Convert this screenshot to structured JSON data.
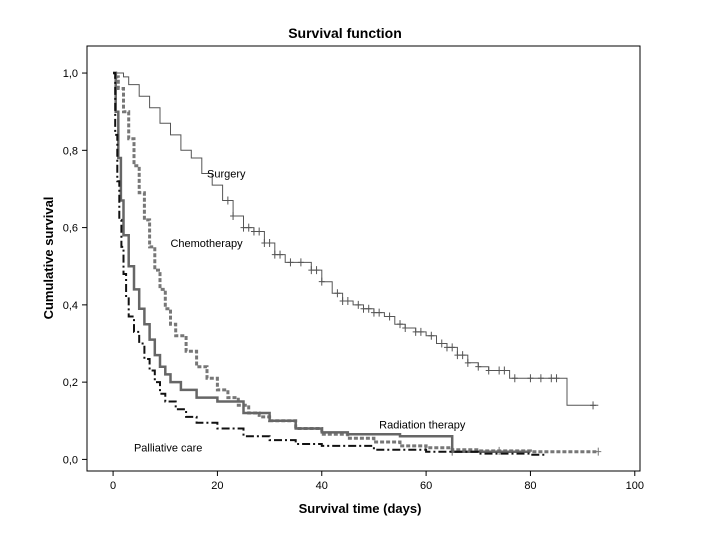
{
  "chart_data": {
    "type": "line",
    "title": "Survival function",
    "xlabel": "Survival time (days)",
    "ylabel": "Cumulative survival",
    "xlim": [
      -5,
      101
    ],
    "ylim": [
      -0.03,
      1.07
    ],
    "xticks": [
      0,
      20,
      40,
      60,
      80,
      100
    ],
    "xtick_labels": [
      "0",
      "20",
      "40",
      "60",
      "80",
      "100"
    ],
    "yticks": [
      0,
      0.2,
      0.4,
      0.6,
      0.8,
      1.0
    ],
    "ytick_labels": [
      "0,0",
      "0,2",
      "0,4",
      "0,6",
      "0,8",
      "1,0"
    ],
    "grid": false,
    "series": [
      {
        "name": "Surgery",
        "color": "#555555",
        "style": "thin-solid",
        "points": [
          [
            0,
            1.0
          ],
          [
            1,
            1.0
          ],
          [
            2,
            0.99
          ],
          [
            3,
            0.97
          ],
          [
            5,
            0.94
          ],
          [
            7,
            0.91
          ],
          [
            9,
            0.87
          ],
          [
            11,
            0.84
          ],
          [
            13,
            0.8
          ],
          [
            15,
            0.78
          ],
          [
            17,
            0.74
          ],
          [
            19,
            0.71
          ],
          [
            21,
            0.67
          ],
          [
            23,
            0.63
          ],
          [
            25,
            0.6
          ],
          [
            27,
            0.59
          ],
          [
            29,
            0.56
          ],
          [
            31,
            0.53
          ],
          [
            33,
            0.51
          ],
          [
            36,
            0.51
          ],
          [
            38,
            0.49
          ],
          [
            40,
            0.46
          ],
          [
            42,
            0.43
          ],
          [
            44,
            0.41
          ],
          [
            46,
            0.4
          ],
          [
            48,
            0.39
          ],
          [
            50,
            0.38
          ],
          [
            52,
            0.37
          ],
          [
            54,
            0.35
          ],
          [
            56,
            0.34
          ],
          [
            58,
            0.33
          ],
          [
            60,
            0.32
          ],
          [
            62,
            0.3
          ],
          [
            64,
            0.29
          ],
          [
            66,
            0.27
          ],
          [
            68,
            0.25
          ],
          [
            70,
            0.24
          ],
          [
            72,
            0.23
          ],
          [
            76,
            0.21
          ],
          [
            80,
            0.21
          ],
          [
            87,
            0.21
          ],
          [
            87,
            0.14
          ],
          [
            93,
            0.14
          ]
        ],
        "censor_x": [
          22,
          23,
          25,
          26,
          27,
          28,
          29,
          30,
          31,
          32,
          34,
          36,
          38,
          39,
          40,
          43,
          44,
          45,
          47,
          48,
          49,
          50,
          51,
          53,
          55,
          56,
          58,
          59,
          61,
          63,
          64,
          65,
          66,
          67,
          68,
          70,
          72,
          74,
          75,
          77,
          80,
          82,
          84,
          85,
          92
        ]
      },
      {
        "name": "Chemotherapy",
        "color": "#777777",
        "style": "thick-dotted",
        "points": [
          [
            0,
            1.0
          ],
          [
            0.5,
            0.99
          ],
          [
            1,
            0.96
          ],
          [
            2,
            0.9
          ],
          [
            3,
            0.83
          ],
          [
            4,
            0.76
          ],
          [
            5,
            0.69
          ],
          [
            6,
            0.62
          ],
          [
            7,
            0.55
          ],
          [
            8,
            0.49
          ],
          [
            9,
            0.44
          ],
          [
            10,
            0.39
          ],
          [
            11,
            0.35
          ],
          [
            12,
            0.32
          ],
          [
            14,
            0.28
          ],
          [
            16,
            0.24
          ],
          [
            18,
            0.21
          ],
          [
            20,
            0.18
          ],
          [
            22,
            0.16
          ],
          [
            24,
            0.14
          ],
          [
            26,
            0.12
          ],
          [
            28,
            0.11
          ],
          [
            30,
            0.1
          ],
          [
            35,
            0.08
          ],
          [
            40,
            0.065
          ],
          [
            45,
            0.055
          ],
          [
            50,
            0.045
          ],
          [
            55,
            0.035
          ],
          [
            60,
            0.03
          ],
          [
            65,
            0.025
          ],
          [
            70,
            0.022
          ],
          [
            80,
            0.02
          ],
          [
            93,
            0.02
          ]
        ],
        "censor_x": [
          74,
          93
        ]
      },
      {
        "name": "Radiation therapy",
        "color": "#666666",
        "style": "thick-solid",
        "points": [
          [
            0,
            1.0
          ],
          [
            0.5,
            0.9
          ],
          [
            1,
            0.78
          ],
          [
            1.5,
            0.67
          ],
          [
            2,
            0.58
          ],
          [
            3,
            0.5
          ],
          [
            4,
            0.44
          ],
          [
            5,
            0.39
          ],
          [
            6,
            0.35
          ],
          [
            7,
            0.31
          ],
          [
            8,
            0.27
          ],
          [
            9,
            0.24
          ],
          [
            10,
            0.22
          ],
          [
            11,
            0.2
          ],
          [
            13,
            0.18
          ],
          [
            16,
            0.16
          ],
          [
            20,
            0.15
          ],
          [
            25,
            0.12
          ],
          [
            30,
            0.1
          ],
          [
            35,
            0.08
          ],
          [
            40,
            0.07
          ],
          [
            45,
            0.065
          ],
          [
            55,
            0.06
          ],
          [
            65,
            0.06
          ],
          [
            65,
            0.02
          ],
          [
            80,
            0.02
          ]
        ],
        "censor_x": [
          65
        ]
      },
      {
        "name": "Palliative care",
        "color": "#111111",
        "style": "dash-dot",
        "points": [
          [
            0,
            1.0
          ],
          [
            0.4,
            0.84
          ],
          [
            0.8,
            0.72
          ],
          [
            1.2,
            0.62
          ],
          [
            1.6,
            0.55
          ],
          [
            2,
            0.48
          ],
          [
            2.5,
            0.42
          ],
          [
            3,
            0.37
          ],
          [
            4,
            0.33
          ],
          [
            5,
            0.3
          ],
          [
            6,
            0.26
          ],
          [
            7,
            0.23
          ],
          [
            8,
            0.2
          ],
          [
            9,
            0.17
          ],
          [
            10,
            0.15
          ],
          [
            12,
            0.13
          ],
          [
            14,
            0.11
          ],
          [
            16,
            0.095
          ],
          [
            20,
            0.08
          ],
          [
            25,
            0.06
          ],
          [
            30,
            0.05
          ],
          [
            35,
            0.04
          ],
          [
            40,
            0.035
          ],
          [
            50,
            0.025
          ],
          [
            60,
            0.02
          ],
          [
            70,
            0.015
          ],
          [
            80,
            0.012
          ],
          [
            83,
            0.012
          ]
        ],
        "censor_x": []
      }
    ],
    "annotations": [
      {
        "text": "Surgery",
        "x": 18,
        "y": 0.73
      },
      {
        "text": "Chemotherapy",
        "x": 11,
        "y": 0.55
      },
      {
        "text": "Radiation therapy",
        "x": 51,
        "y": 0.08
      },
      {
        "text": "Palliative care",
        "x": 4,
        "y": 0.02
      }
    ]
  }
}
